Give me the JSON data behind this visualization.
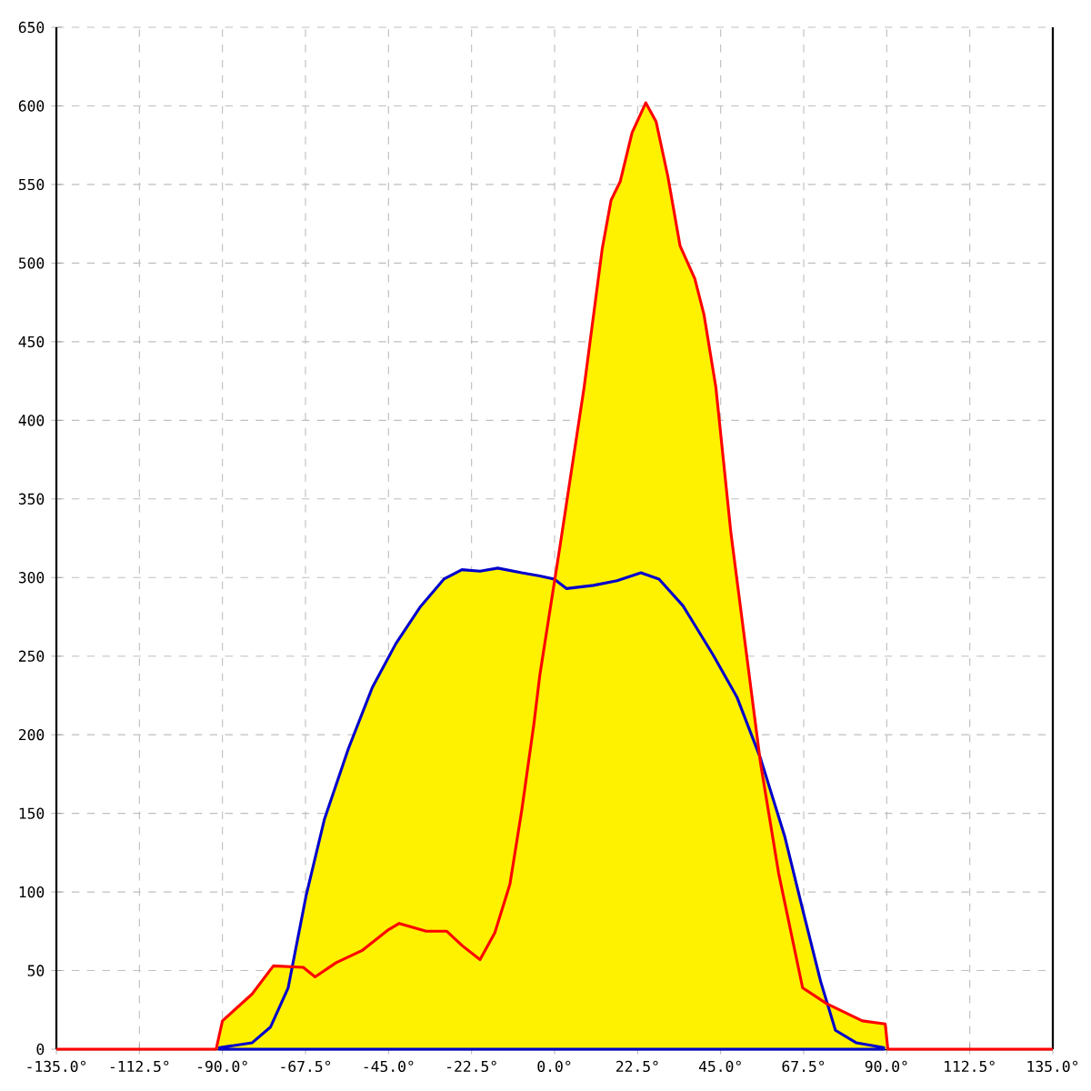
{
  "chart_data": {
    "type": "area",
    "xlim": [
      -135,
      135
    ],
    "xticks": [
      {
        "value": -135,
        "label": "-135.0°"
      },
      {
        "value": -112.5,
        "label": "-112.5°"
      },
      {
        "value": -90,
        "label": "-90.0°"
      },
      {
        "value": -67.5,
        "label": "-67.5°"
      },
      {
        "value": -45,
        "label": "-45.0°"
      },
      {
        "value": -22.5,
        "label": "-22.5°"
      },
      {
        "value": 0,
        "label": "0.0°"
      },
      {
        "value": 22.5,
        "label": "22.5°"
      },
      {
        "value": 45,
        "label": "45.0°"
      },
      {
        "value": 67.5,
        "label": "67.5°"
      },
      {
        "value": 90,
        "label": "90.0°"
      },
      {
        "value": 112.5,
        "label": "112.5°"
      },
      {
        "value": 135,
        "label": "135.0°"
      }
    ],
    "ylim": [
      0,
      650
    ],
    "yticks": [
      0,
      50,
      100,
      150,
      200,
      250,
      300,
      350,
      400,
      450,
      500,
      550,
      600,
      650
    ],
    "grid": true,
    "series": [
      {
        "color": "#0000cc",
        "x": [
          -90.8,
          -82,
          -77,
          -72.2,
          -67.3,
          -62.4,
          -55.9,
          -49.4,
          -43,
          -36.5,
          -30,
          -25.1,
          -20.2,
          -15.4,
          -8.9,
          -4,
          -0.1,
          3.2,
          10.5,
          16.9,
          23.4,
          28.3,
          34.8,
          42.9,
          49.4,
          55.8,
          62.4,
          67.2,
          72.1,
          76.1,
          81.8,
          89.2
        ],
        "values": [
          1,
          4,
          14,
          39,
          98,
          146,
          191,
          230,
          258,
          281,
          299,
          305,
          304,
          306,
          303,
          301,
          299,
          293,
          295,
          298,
          303,
          299,
          282,
          251,
          224,
          185,
          135,
          89,
          43,
          12,
          4,
          1
        ]
      },
      {
        "color": "#ff0000",
        "x": [
          -135,
          -91.7,
          -90,
          -82,
          -76.2,
          -68.1,
          -64.9,
          -59.2,
          -52,
          -45,
          -42.1,
          -34.8,
          -29.2,
          -25.1,
          -20.2,
          -16.2,
          -12.1,
          -8.9,
          -5.6,
          -4,
          1.6,
          8,
          12.9,
          15.3,
          17.8,
          21,
          24.7,
          27.5,
          30.7,
          34,
          38,
          40.5,
          43.7,
          47.8,
          55.8,
          60.7,
          67.2,
          73.7,
          83.4,
          89.6,
          90.3,
          135
        ],
        "values": [
          0,
          0,
          18,
          35,
          53,
          52,
          46,
          55,
          63,
          76,
          80,
          75,
          75,
          66,
          57,
          74,
          105,
          152,
          207,
          238,
          322,
          421,
          509,
          540,
          552,
          583,
          602,
          590,
          555,
          511,
          490,
          467,
          421,
          328,
          182,
          112,
          39,
          29,
          18,
          16,
          0,
          0
        ]
      }
    ]
  }
}
